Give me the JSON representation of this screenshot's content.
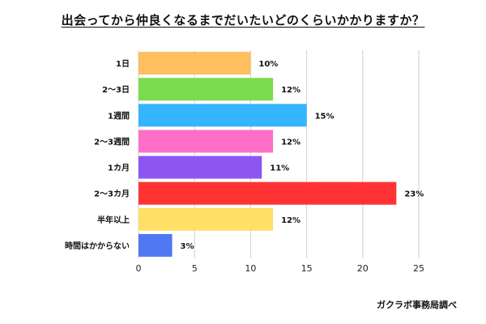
{
  "chart_data": {
    "type": "bar",
    "orientation": "horizontal",
    "title": "出会ってから仲良くなるまでだいたいどのくらいかかりますか？",
    "categories": [
      "1日",
      "2〜3日",
      "1週間",
      "2〜3週間",
      "1カ月",
      "2〜3カ月",
      "半年以上",
      "時間はかからない"
    ],
    "values": [
      10,
      12,
      15,
      12,
      11,
      23,
      12,
      3
    ],
    "value_labels": [
      "10%",
      "12%",
      "15%",
      "12%",
      "11%",
      "23%",
      "12%",
      "3%"
    ],
    "colors": [
      "#FFBF5F",
      "#7CDB4E",
      "#35B4FF",
      "#FF6EC7",
      "#8E55F2",
      "#FF3333",
      "#FFDF66",
      "#4F78F2"
    ],
    "x_ticks": [
      "0",
      "5",
      "10",
      "15",
      "20",
      "25"
    ],
    "xlim": [
      0,
      25
    ],
    "grid": true,
    "source": "ガクラボ事務局調べ"
  }
}
